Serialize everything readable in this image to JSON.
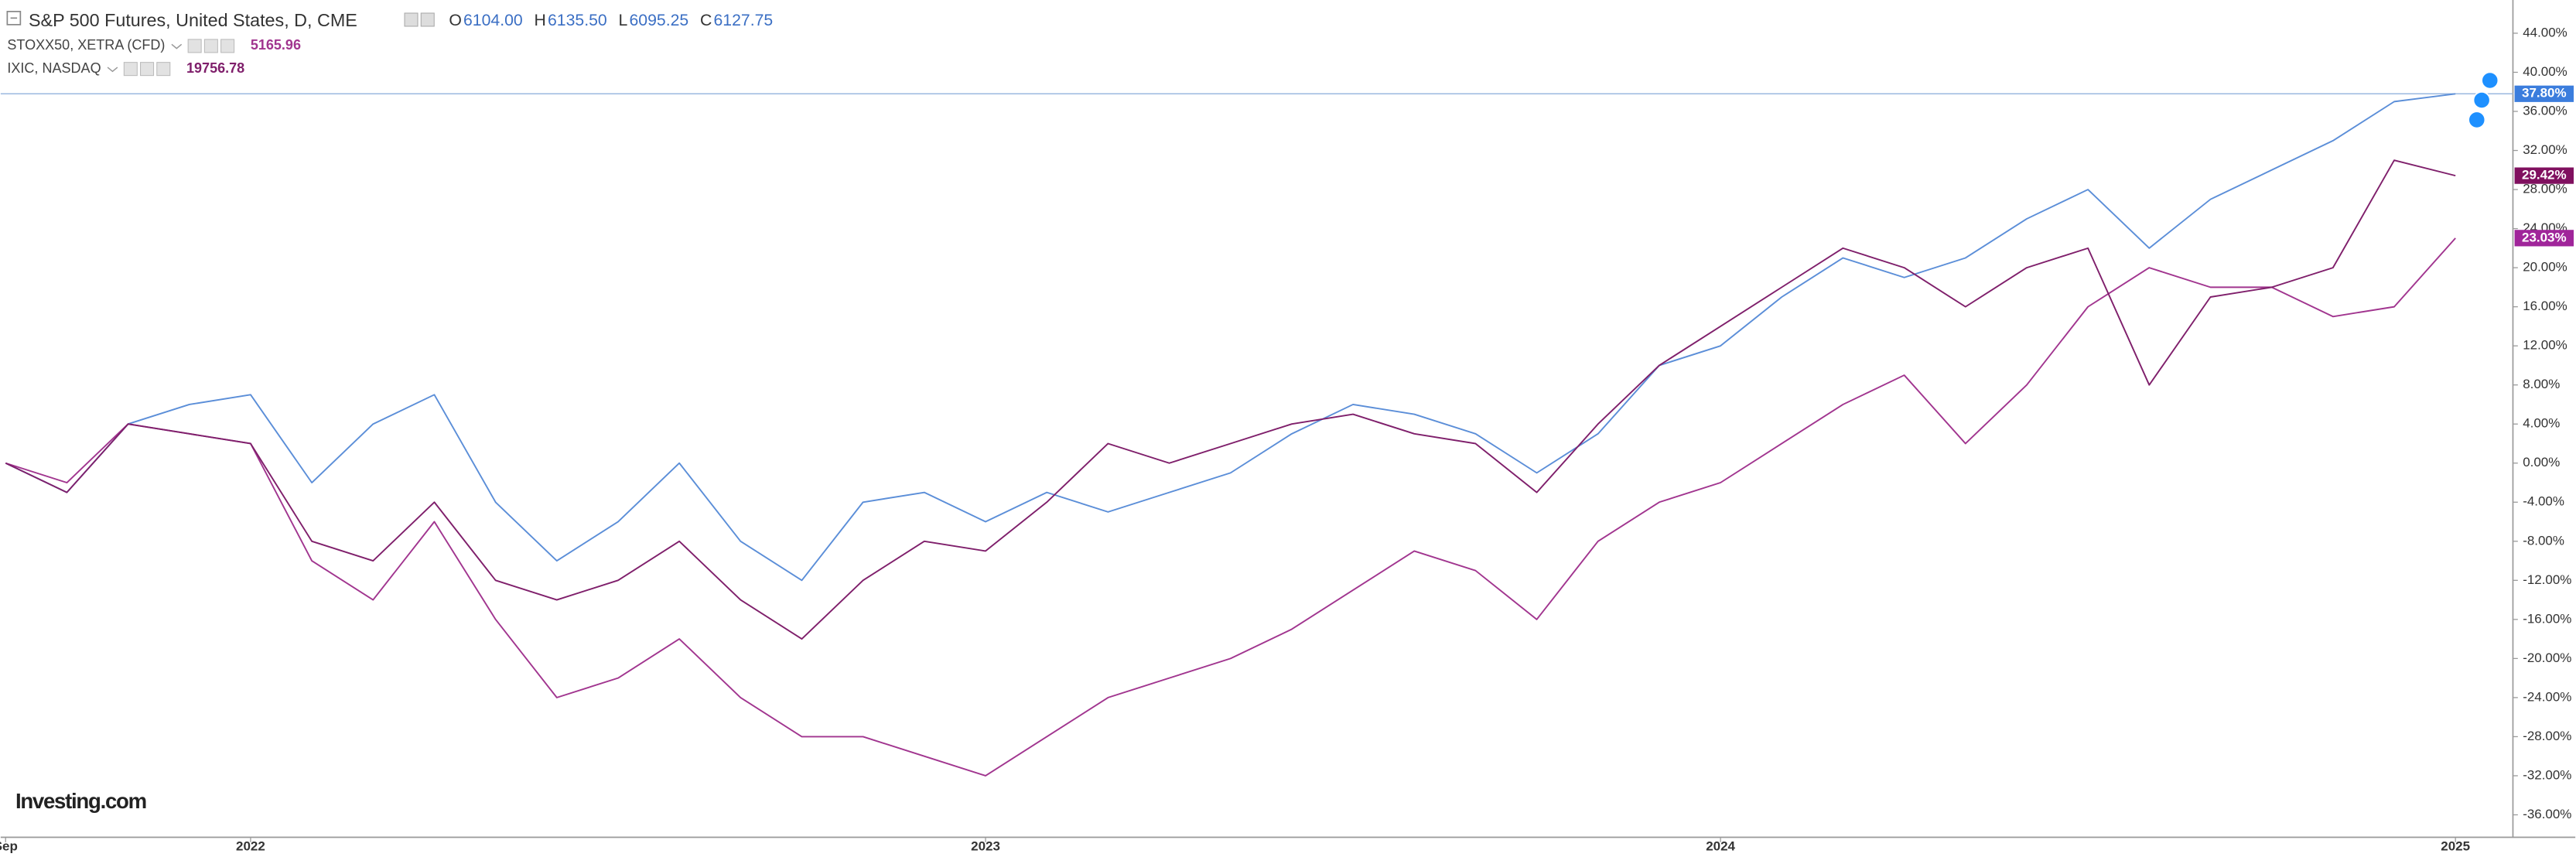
{
  "chart_data": {
    "type": "line",
    "title": "S&P 500 Futures, United States, D, CME",
    "ohlc": [
      {
        "label": "O",
        "value": "6104.00"
      },
      {
        "label": "H",
        "value": "6135.50"
      },
      {
        "label": "L",
        "value": "6095.25"
      },
      {
        "label": "C",
        "value": "6127.75"
      }
    ],
    "logo": "Investing.com",
    "x": [
      "2021-09",
      "2021-10",
      "2021-11",
      "2021-12",
      "2022-01",
      "2022-02",
      "2022-03",
      "2022-04",
      "2022-05",
      "2022-06",
      "2022-07",
      "2022-08",
      "2022-09",
      "2022-10",
      "2022-11",
      "2022-12",
      "2023-01",
      "2023-02",
      "2023-03",
      "2023-04",
      "2023-05",
      "2023-06",
      "2023-07",
      "2023-08",
      "2023-09",
      "2023-10",
      "2023-11",
      "2023-12",
      "2024-01",
      "2024-02",
      "2024-03",
      "2024-04",
      "2024-05",
      "2024-06",
      "2024-07",
      "2024-08",
      "2024-09",
      "2024-10",
      "2024-11",
      "2024-12",
      "2025-01"
    ],
    "series": [
      {
        "name": "S&P 500 Futures",
        "color": "#5b8ed8",
        "label_color": "#3b7ddd",
        "last_label": "37.80%",
        "values": [
          0,
          -3,
          4,
          6,
          7,
          -2,
          4,
          7,
          -4,
          -10,
          -6,
          0,
          -8,
          -12,
          -4,
          -3,
          -6,
          -3,
          -5,
          -3,
          -1,
          3,
          6,
          5,
          3,
          -1,
          3,
          10,
          12,
          17,
          21,
          19,
          21,
          25,
          28,
          22,
          27,
          30,
          33,
          37,
          37.8
        ]
      },
      {
        "name": "STOXX50, XETRA (CFD)",
        "price": "5165.96",
        "color": "#a1358f",
        "label_color": "#a0259a",
        "last_label": "23.03%",
        "values": [
          0,
          -2,
          4,
          3,
          2,
          -10,
          -14,
          -6,
          -16,
          -24,
          -22,
          -18,
          -24,
          -28,
          -28,
          -30,
          -32,
          -28,
          -24,
          -22,
          -20,
          -17,
          -13,
          -9,
          -11,
          -16,
          -8,
          -4,
          -2,
          2,
          6,
          9,
          2,
          8,
          16,
          20,
          18,
          18,
          15,
          16,
          23.03
        ]
      },
      {
        "name": "IXIC, NASDAQ",
        "price": "19756.78",
        "color": "#7f1f6b",
        "label_color": "#80105f",
        "last_label": "29.42%",
        "values": [
          0,
          -3,
          4,
          3,
          2,
          -8,
          -10,
          -4,
          -12,
          -14,
          -12,
          -8,
          -14,
          -18,
          -12,
          -8,
          -9,
          -4,
          2,
          0,
          2,
          4,
          5,
          3,
          2,
          -3,
          4,
          10,
          14,
          18,
          22,
          20,
          16,
          20,
          22,
          8,
          17,
          18,
          20,
          31,
          29.42
        ]
      }
    ],
    "xticks": [
      {
        "value": "2021-09",
        "label": "Sep"
      },
      {
        "value": "2022-01",
        "label": "2022"
      },
      {
        "value": "2023-01",
        "label": "2023"
      },
      {
        "value": "2024-01",
        "label": "2024"
      },
      {
        "value": "2025-01",
        "label": "2025"
      }
    ],
    "ylim": [
      -38.3,
      47.4
    ],
    "yticks": [
      {
        "value": -36,
        "label": "-36.00%"
      },
      {
        "value": -32,
        "label": "-32.00%"
      },
      {
        "value": -28,
        "label": "-28.00%"
      },
      {
        "value": -24,
        "label": "-24.00%"
      },
      {
        "value": -20,
        "label": "-20.00%"
      },
      {
        "value": -16,
        "label": "-16.00%"
      },
      {
        "value": -12,
        "label": "-12.00%"
      },
      {
        "value": -8,
        "label": "-8.00%"
      },
      {
        "value": -4,
        "label": "-4.00%"
      },
      {
        "value": 0,
        "label": "0.00%"
      },
      {
        "value": 4,
        "label": "4.00%"
      },
      {
        "value": 8,
        "label": "8.00%"
      },
      {
        "value": 12,
        "label": "12.00%"
      },
      {
        "value": 16,
        "label": "16.00%"
      },
      {
        "value": 20,
        "label": "20.00%"
      },
      {
        "value": 24,
        "label": "24.00%"
      },
      {
        "value": 28,
        "label": "28.00%"
      },
      {
        "value": 32,
        "label": "32.00%"
      },
      {
        "value": 36,
        "label": "36.00%"
      },
      {
        "value": 40,
        "label": "40.00%"
      },
      {
        "value": 44,
        "label": "44.00%"
      }
    ]
  }
}
